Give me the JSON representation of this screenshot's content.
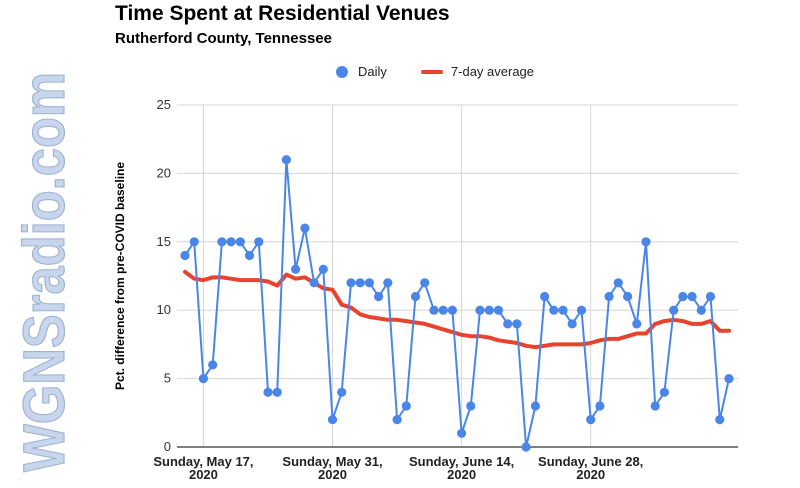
{
  "watermark_text": "WGNSradio.com",
  "chart_data": {
    "type": "line",
    "title": "Time Spent at Residential Venues",
    "subtitle": "Rutherford County, Tennessee",
    "ylabel": "Pct. difference from pre-COVID baseline",
    "ylim": [
      0,
      25
    ],
    "yticks": [
      0,
      5,
      10,
      15,
      20,
      25
    ],
    "x_start": "2020-05-15",
    "xticks": [
      {
        "date": "2020-05-17",
        "line1": "Sunday, May 17,",
        "line2": "2020"
      },
      {
        "date": "2020-05-31",
        "line1": "Sunday, May 31,",
        "line2": "2020"
      },
      {
        "date": "2020-06-14",
        "line1": "Sunday, June 14,",
        "line2": "2020"
      },
      {
        "date": "2020-06-28",
        "line1": "Sunday, June 28,",
        "line2": "2020"
      }
    ],
    "grid": true,
    "legend_position": "top",
    "series": [
      {
        "name": "Daily",
        "color": "#4a86e8",
        "style": "line-with-markers",
        "values": [
          14,
          15,
          5,
          6,
          15,
          15,
          15,
          14,
          15,
          4,
          4,
          21,
          13,
          16,
          12,
          13,
          2,
          4,
          12,
          12,
          12,
          11,
          12,
          2,
          3,
          11,
          12,
          10,
          10,
          10,
          1,
          3,
          10,
          10,
          10,
          9,
          9,
          0,
          3,
          11,
          10,
          10,
          9,
          10,
          2,
          3,
          11,
          12,
          11,
          9,
          15,
          3,
          4,
          10,
          11,
          11,
          10,
          11,
          2,
          5
        ]
      },
      {
        "name": "7-day average",
        "color": "#e8432e",
        "style": "line",
        "values": [
          12.8,
          12.3,
          12.2,
          12.4,
          12.4,
          12.3,
          12.2,
          12.2,
          12.2,
          12.1,
          11.8,
          12.6,
          12.3,
          12.4,
          12.0,
          11.6,
          11.5,
          10.4,
          10.2,
          9.7,
          9.5,
          9.4,
          9.3,
          9.3,
          9.2,
          9.1,
          9.0,
          8.8,
          8.6,
          8.4,
          8.2,
          8.1,
          8.1,
          8.0,
          7.8,
          7.7,
          7.6,
          7.4,
          7.3,
          7.4,
          7.5,
          7.5,
          7.5,
          7.5,
          7.6,
          7.8,
          7.9,
          7.9,
          8.1,
          8.3,
          8.3,
          9.0,
          9.2,
          9.3,
          9.2,
          9.0,
          9.0,
          9.2,
          8.5,
          8.5
        ]
      }
    ]
  }
}
